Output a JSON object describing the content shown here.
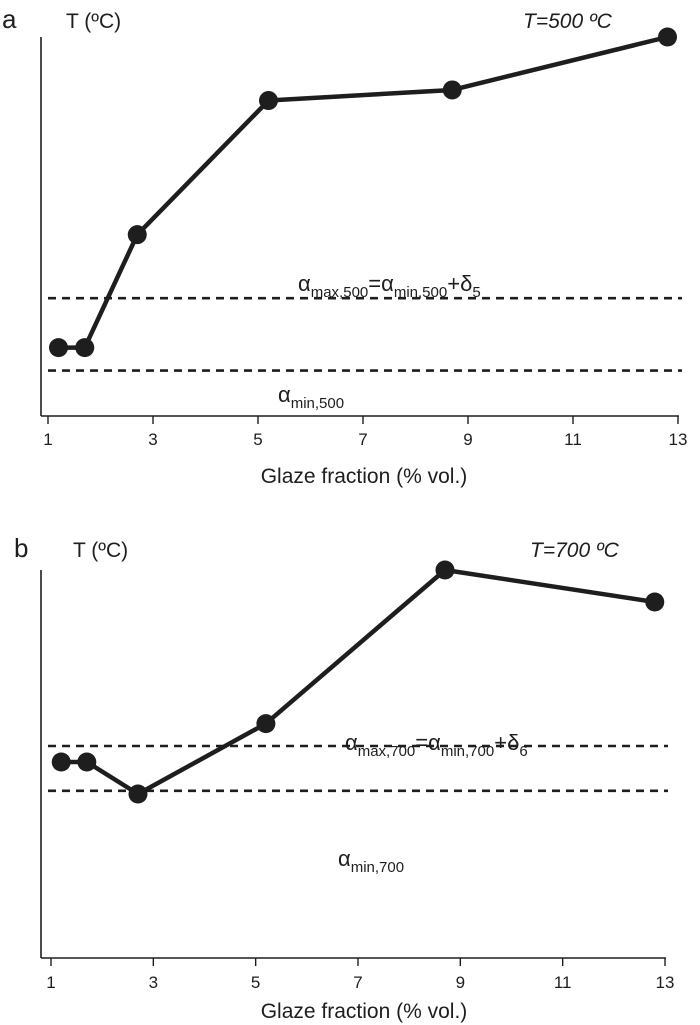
{
  "chart_data": [
    {
      "type": "line",
      "panel_letter": "a",
      "ylabel": "T (ºC)",
      "temperature_label": "T=500 ºC",
      "xlabel": "Glaze fraction (% vol.)",
      "xlim": [
        1,
        13
      ],
      "ylim": [
        0,
        100
      ],
      "x_ticks": [
        1,
        3,
        5,
        7,
        9,
        11,
        13
      ],
      "series": [
        {
          "x": [
            1.2,
            1.7,
            2.7,
            5.2,
            8.7,
            12.8
          ],
          "y": [
            12,
            12,
            44,
            82,
            85,
            100
          ]
        }
      ],
      "hlines": [
        {
          "y": 26,
          "style": "dashed",
          "label": {
            "greek": "α",
            "sub": "max,500",
            "eq": "=",
            "greek2": "α",
            "sub2": "min,500",
            "plus": "+",
            "greek3": "δ",
            "sub3": "5"
          }
        },
        {
          "y": 5.5,
          "style": "dashed",
          "label": {
            "greek": "α",
            "sub": "min,500"
          }
        }
      ]
    },
    {
      "type": "line",
      "panel_letter": "b",
      "ylabel": "T (ºC)",
      "temperature_label": "T=700 ºC",
      "xlabel": "Glaze fraction (% vol.)",
      "xlim": [
        1,
        13
      ],
      "ylim": [
        0,
        100
      ],
      "x_ticks": [
        1,
        3,
        5,
        7,
        9,
        11,
        13
      ],
      "series": [
        {
          "x": [
            1.2,
            1.7,
            2.7,
            5.2,
            8.7,
            12.8
          ],
          "y": [
            40,
            40,
            30,
            52,
            100,
            90
          ]
        }
      ],
      "hlines": [
        {
          "y": 45,
          "style": "dashed",
          "label": {
            "greek": "α",
            "sub": "max,700",
            "eq": "=",
            "greek2": "α",
            "sub2": "min,700",
            "plus": "+",
            "greek3": "δ",
            "sub3": "6"
          }
        },
        {
          "y": 31,
          "style": "dashed",
          "label": {
            "greek": "α",
            "sub": "min,700"
          }
        }
      ]
    }
  ]
}
